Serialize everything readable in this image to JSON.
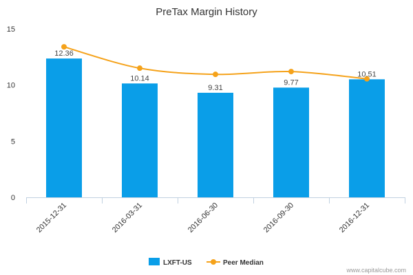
{
  "chart_data": {
    "type": "bar",
    "title": "PreTax Margin History",
    "categories": [
      "2015-12-31",
      "2016-03-31",
      "2016-06-30",
      "2016-09-30",
      "2016-12-31"
    ],
    "ylim": [
      0,
      15
    ],
    "yticks": [
      0,
      5,
      10,
      15
    ],
    "series": [
      {
        "name": "LXFT-US",
        "type": "bar",
        "color": "#0a9ee8",
        "values": [
          12.36,
          10.14,
          9.31,
          9.77,
          10.51
        ],
        "labels": [
          "12.36",
          "10.14",
          "9.31",
          "9.77",
          "10.51"
        ]
      },
      {
        "name": "Peer Median",
        "type": "line",
        "color": "#f5a21a",
        "values": [
          13.4,
          11.5,
          10.95,
          11.2,
          10.55
        ]
      }
    ],
    "legend": "bottom-center",
    "grid": false
  },
  "footer": {
    "credit": "www.capitalcube.com"
  }
}
